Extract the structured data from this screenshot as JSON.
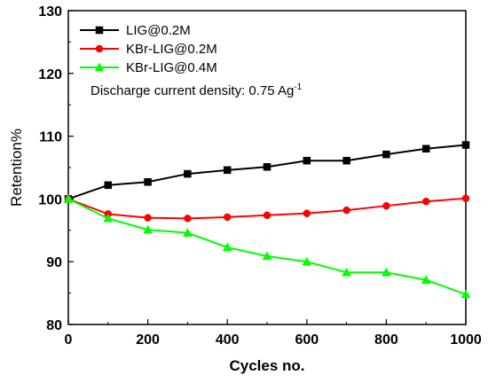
{
  "chart_data": {
    "type": "line",
    "xlabel": "Cycles no.",
    "ylabel": "Retention%",
    "xlim": [
      0,
      1000
    ],
    "ylim": [
      80,
      130
    ],
    "xticks": [
      0,
      200,
      400,
      600,
      800,
      1000
    ],
    "yticks": [
      80,
      90,
      100,
      110,
      120,
      130
    ],
    "grid": false,
    "legend_position": "top-left",
    "annotation": {
      "text": "Discharge current density: 0.75 Ag",
      "superscript": "-1"
    },
    "x": [
      0,
      100,
      200,
      300,
      400,
      500,
      600,
      700,
      800,
      900,
      1000
    ],
    "series": [
      {
        "name": "LIG@0.2M",
        "color": "#000000",
        "marker": "square",
        "values": [
          100,
          102.2,
          102.7,
          104.0,
          104.6,
          105.1,
          106.1,
          106.1,
          107.1,
          108.0,
          108.6
        ]
      },
      {
        "name": "KBr-LIG@0.2M",
        "color": "#ff0000",
        "marker": "circle",
        "values": [
          100,
          97.6,
          97.0,
          96.9,
          97.1,
          97.4,
          97.7,
          98.2,
          98.9,
          99.6,
          100.1
        ]
      },
      {
        "name": "KBr-LIG@0.4M",
        "color": "#00ff00",
        "marker": "triangle",
        "values": [
          100,
          96.9,
          95.1,
          94.6,
          92.3,
          90.9,
          90.0,
          88.3,
          88.3,
          87.1,
          84.8
        ]
      }
    ]
  }
}
